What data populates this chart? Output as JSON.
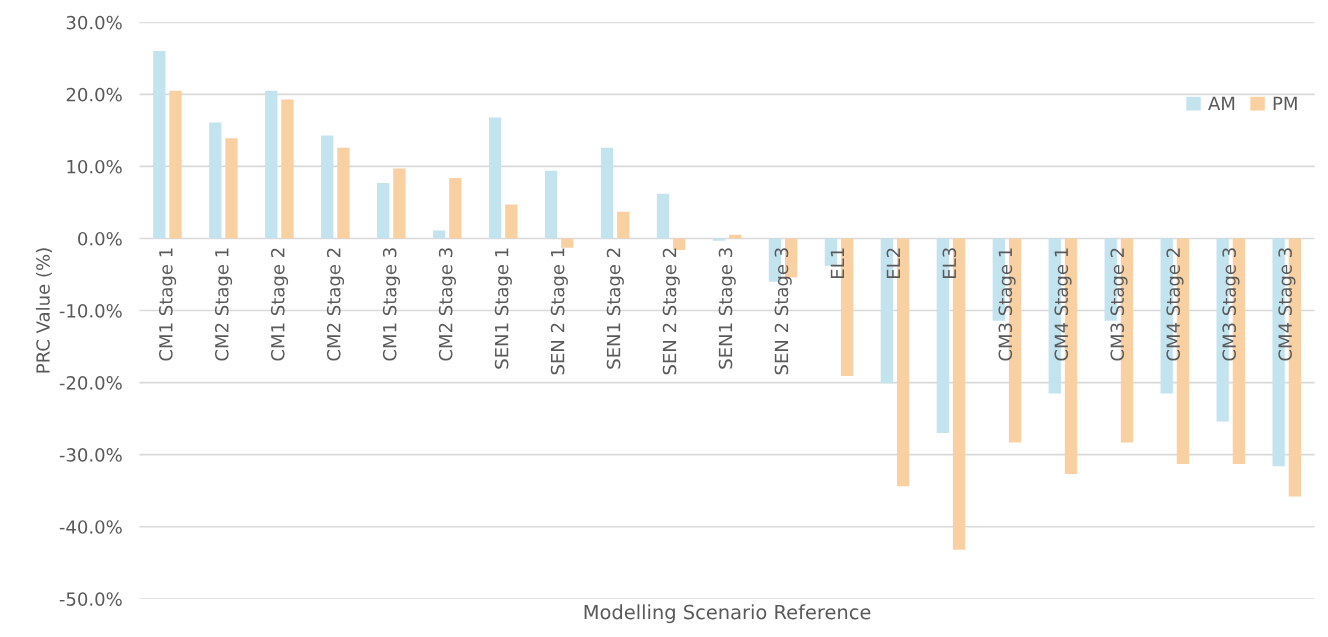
{
  "chart_data": {
    "type": "bar",
    "xlabel": "Modelling Scenario Reference",
    "ylabel": "PRC Value (%)",
    "categories": [
      "CM1 Stage 1",
      "CM2 Stage 1",
      "CM1 Stage 2",
      "CM2 Stage 2",
      "CM1 Stage 3",
      "CM2 Stage 3",
      "SEN1 Stage 1",
      "SEN 2 Stage 1",
      "SEN1 Stage 2",
      "SEN 2 Stage 2",
      "SEN1 Stage 3",
      "SEN 2 Stage 3",
      "EL1",
      "EL2",
      "EL3",
      "CM3 Stage 1",
      "CM4 Stage 1",
      "CM3 Stage 2",
      "CM4 Stage 2",
      "CM3 Stage 3",
      "CM4 Stage 3"
    ],
    "series": [
      {
        "name": "AM",
        "color": "#c3e3ef",
        "values": [
          26.0,
          16.1,
          20.5,
          14.3,
          7.7,
          1.1,
          16.8,
          9.4,
          12.6,
          6.2,
          -0.3,
          -6.0,
          -3.8,
          -20.1,
          -27.0,
          -11.4,
          -21.5,
          -11.4,
          -21.5,
          -25.4,
          -31.6
        ]
      },
      {
        "name": "PM",
        "color": "#f8d0a2",
        "values": [
          20.5,
          13.9,
          19.3,
          12.6,
          9.7,
          8.4,
          4.7,
          -1.3,
          3.7,
          -1.6,
          0.5,
          -5.4,
          -19.1,
          -34.4,
          -43.2,
          -28.3,
          -32.7,
          -28.3,
          -31.3,
          -31.3,
          -35.8
        ]
      }
    ],
    "ylim": [
      -50,
      30
    ],
    "yticks": [
      {
        "value": -50,
        "label": "-50.0%"
      },
      {
        "value": -40,
        "label": "-40.0%"
      },
      {
        "value": -30,
        "label": "-30.0%"
      },
      {
        "value": -20,
        "label": "-20.0%"
      },
      {
        "value": -10,
        "label": "-10.0%"
      },
      {
        "value": 0,
        "label": "0.0%"
      },
      {
        "value": 10,
        "label": "10.0%"
      },
      {
        "value": 20,
        "label": "20.0%"
      },
      {
        "value": 30,
        "label": "30.0%"
      }
    ],
    "grid": "y",
    "legend": "top right"
  }
}
